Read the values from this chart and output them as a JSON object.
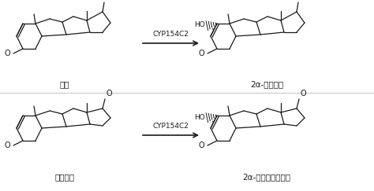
{
  "background_color": "#ffffff",
  "arrow_label1": "CYP154C2",
  "arrow_label2": "CYP154C2",
  "label_top_left": "蔫锐",
  "label_top_right": "2α-羟基蔫锐",
  "label_bot_left": "雄烯二锐",
  "label_bot_right": "2α-羟基雄烯二蔫锐",
  "figsize": [
    4.74,
    2.43
  ],
  "dpi": 100,
  "struct_color": "#1a1a1a",
  "divider_color": "#aaaaaa"
}
